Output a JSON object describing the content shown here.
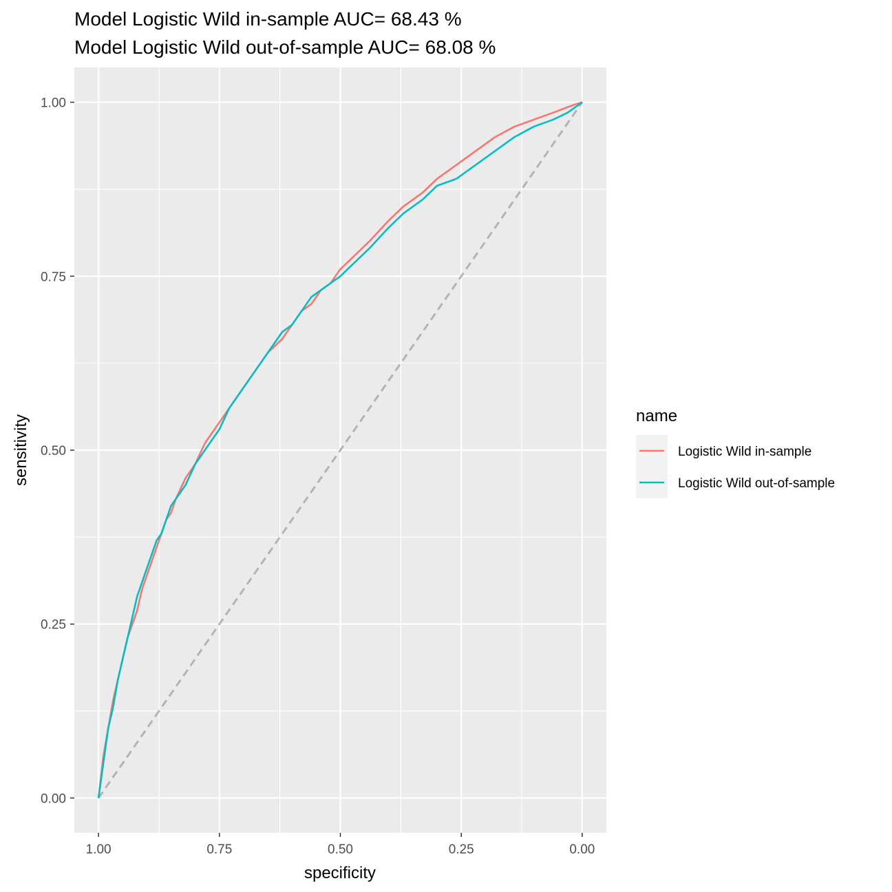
{
  "chart_data": {
    "type": "line",
    "title_lines": [
      "Model Logistic Wild in-sample AUC= 68.43 %",
      "Model Logistic Wild out-of-sample AUC= 68.08 %"
    ],
    "xlabel": "specificity",
    "ylabel": "sensitivity",
    "x_reversed": true,
    "xlim": [
      1.05,
      -0.05
    ],
    "ylim": [
      -0.05,
      1.05
    ],
    "x_ticks": [
      1.0,
      0.75,
      0.5,
      0.25,
      0.0
    ],
    "x_tick_labels": [
      "1.00",
      "0.75",
      "0.50",
      "0.25",
      "0.00"
    ],
    "y_ticks": [
      0.0,
      0.25,
      0.5,
      0.75,
      1.0
    ],
    "y_tick_labels": [
      "0.00",
      "0.25",
      "0.50",
      "0.75",
      "1.00"
    ],
    "grid": true,
    "legend": {
      "title": "name",
      "position": "right"
    },
    "reference_line": {
      "x": [
        1.0,
        0.0
      ],
      "y": [
        0.0,
        1.0
      ],
      "color": "#b3b3b3",
      "style": "dashed"
    },
    "series": [
      {
        "name": "Logistic Wild in-sample",
        "color": "#F8766D",
        "x": [
          1.0,
          0.99,
          0.98,
          0.97,
          0.96,
          0.95,
          0.94,
          0.93,
          0.92,
          0.91,
          0.9,
          0.89,
          0.88,
          0.87,
          0.86,
          0.85,
          0.84,
          0.82,
          0.8,
          0.78,
          0.76,
          0.75,
          0.73,
          0.71,
          0.69,
          0.67,
          0.65,
          0.62,
          0.6,
          0.58,
          0.56,
          0.54,
          0.52,
          0.5,
          0.47,
          0.44,
          0.4,
          0.37,
          0.33,
          0.3,
          0.26,
          0.22,
          0.18,
          0.14,
          0.1,
          0.06,
          0.03,
          0.01,
          0.0
        ],
        "y": [
          0.0,
          0.06,
          0.1,
          0.14,
          0.17,
          0.2,
          0.23,
          0.25,
          0.27,
          0.3,
          0.32,
          0.34,
          0.36,
          0.38,
          0.4,
          0.41,
          0.43,
          0.46,
          0.48,
          0.51,
          0.53,
          0.54,
          0.56,
          0.58,
          0.6,
          0.62,
          0.64,
          0.66,
          0.68,
          0.7,
          0.71,
          0.73,
          0.74,
          0.76,
          0.78,
          0.8,
          0.83,
          0.85,
          0.87,
          0.89,
          0.91,
          0.93,
          0.95,
          0.965,
          0.975,
          0.985,
          0.993,
          0.998,
          1.0
        ]
      },
      {
        "name": "Logistic Wild out-of-sample",
        "color": "#00BFC4",
        "x": [
          1.0,
          0.99,
          0.98,
          0.97,
          0.96,
          0.95,
          0.94,
          0.93,
          0.92,
          0.91,
          0.9,
          0.89,
          0.88,
          0.87,
          0.86,
          0.85,
          0.84,
          0.82,
          0.8,
          0.78,
          0.76,
          0.75,
          0.73,
          0.71,
          0.69,
          0.67,
          0.65,
          0.62,
          0.6,
          0.58,
          0.56,
          0.54,
          0.52,
          0.5,
          0.47,
          0.44,
          0.4,
          0.37,
          0.33,
          0.3,
          0.26,
          0.22,
          0.18,
          0.14,
          0.1,
          0.06,
          0.03,
          0.01,
          0.0
        ],
        "y": [
          0.0,
          0.05,
          0.1,
          0.13,
          0.17,
          0.2,
          0.23,
          0.26,
          0.29,
          0.31,
          0.33,
          0.35,
          0.37,
          0.38,
          0.4,
          0.42,
          0.43,
          0.45,
          0.48,
          0.5,
          0.52,
          0.53,
          0.56,
          0.58,
          0.6,
          0.62,
          0.64,
          0.67,
          0.68,
          0.7,
          0.72,
          0.73,
          0.74,
          0.75,
          0.77,
          0.79,
          0.82,
          0.84,
          0.86,
          0.88,
          0.89,
          0.91,
          0.93,
          0.95,
          0.965,
          0.975,
          0.985,
          0.995,
          1.0
        ]
      }
    ]
  }
}
